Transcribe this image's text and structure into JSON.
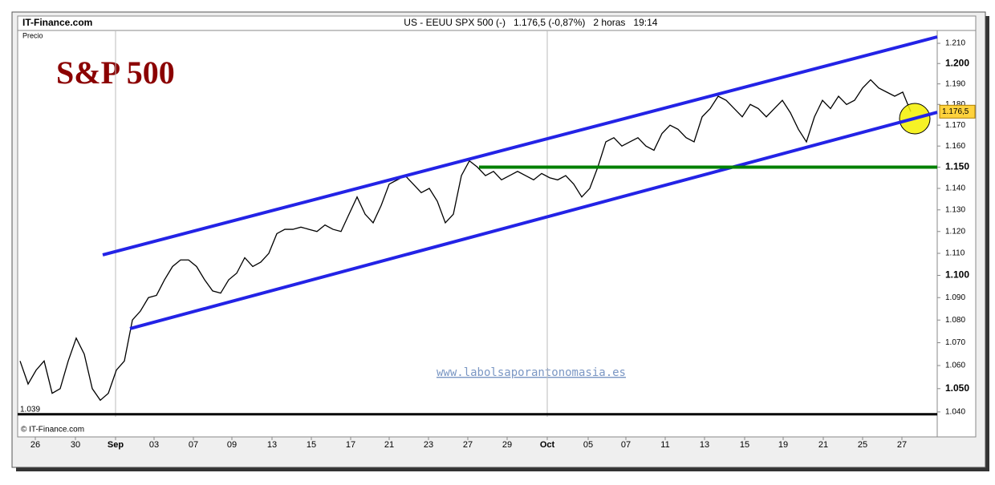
{
  "chart_data": {
    "type": "line",
    "source": "IT-Finance.com",
    "title": "US - EEUU SPX 500 (-)",
    "subtitle": "1.176,5 (-0,87%)   2 horas   19:14",
    "label": "S&P 500",
    "y_label": "Precio",
    "copyright": "© IT-Finance.com",
    "watermark": "www.labolsaporantonomasia.es",
    "log_y": true,
    "color": "#000000",
    "values": [
      1062,
      1052,
      1058,
      1062,
      1048,
      1050,
      1062,
      1072,
      1065,
      1050,
      1045,
      1048,
      1058,
      1062,
      1080,
      1084,
      1090,
      1091,
      1098,
      1104,
      1107,
      1107,
      1104,
      1098,
      1093,
      1092,
      1098,
      1101,
      1108,
      1104,
      1106,
      1110,
      1119,
      1121,
      1121,
      1122,
      1121,
      1120,
      1123,
      1121,
      1120,
      1128,
      1136,
      1128,
      1124,
      1132,
      1142,
      1144,
      1146,
      1142,
      1138,
      1140,
      1134,
      1124,
      1128,
      1146,
      1153,
      1150,
      1146,
      1148,
      1144,
      1146,
      1148,
      1146,
      1144,
      1147,
      1145,
      1144,
      1146,
      1142,
      1136,
      1140,
      1150,
      1162,
      1164,
      1160,
      1162,
      1164,
      1160,
      1158,
      1166,
      1170,
      1168,
      1164,
      1162,
      1174,
      1178,
      1184,
      1182,
      1178,
      1174,
      1180,
      1178,
      1174,
      1178,
      1182,
      1176,
      1168,
      1162,
      1174,
      1182,
      1178,
      1184,
      1180,
      1182,
      1188,
      1192,
      1188,
      1186,
      1184,
      1186,
      1176.5
    ],
    "xlim": [
      -0.3,
      114.3
    ],
    "xticks": [
      {
        "value": 1.9,
        "label": "26"
      },
      {
        "value": 6.9,
        "label": "30"
      },
      {
        "value": 11.9,
        "label": "Sep"
      },
      {
        "value": 16.7,
        "label": "03"
      },
      {
        "value": 21.6,
        "label": "07"
      },
      {
        "value": 26.4,
        "label": "09"
      },
      {
        "value": 31.4,
        "label": "13"
      },
      {
        "value": 36.3,
        "label": "15"
      },
      {
        "value": 41.2,
        "label": "17"
      },
      {
        "value": 46,
        "label": "21"
      },
      {
        "value": 50.9,
        "label": "23"
      },
      {
        "value": 55.8,
        "label": "27"
      },
      {
        "value": 60.7,
        "label": "29"
      },
      {
        "value": 65.7,
        "label": "Oct"
      },
      {
        "value": 70.8,
        "label": "05"
      },
      {
        "value": 75.5,
        "label": "07"
      },
      {
        "value": 80.4,
        "label": "11"
      },
      {
        "value": 85.3,
        "label": "13"
      },
      {
        "value": 90.3,
        "label": "15"
      },
      {
        "value": 95.1,
        "label": "19"
      },
      {
        "value": 100.1,
        "label": "21"
      },
      {
        "value": 105,
        "label": "25"
      },
      {
        "value": 109.9,
        "label": "27"
      }
    ],
    "ylim": [
      1037.9,
      1216.4
    ],
    "yticks": [
      {
        "value": 1040,
        "label": "1.040"
      },
      {
        "value": 1050,
        "label": "1.050"
      },
      {
        "value": 1060,
        "label": "1.060"
      },
      {
        "value": 1070,
        "label": "1.070"
      },
      {
        "value": 1080,
        "label": "1.080"
      },
      {
        "value": 1090,
        "label": "1.090"
      },
      {
        "value": 1100,
        "label": "1.100"
      },
      {
        "value": 1110,
        "label": "1.110"
      },
      {
        "value": 1120,
        "label": "1.120"
      },
      {
        "value": 1130,
        "label": "1.130"
      },
      {
        "value": 1140,
        "label": "1.140"
      },
      {
        "value": 1150,
        "label": "1.150"
      },
      {
        "value": 1160,
        "label": "1.160"
      },
      {
        "value": 1170,
        "label": "1.170"
      },
      {
        "value": 1180,
        "label": "1.180"
      },
      {
        "value": 1190,
        "label": "1.190"
      },
      {
        "value": 1200,
        "label": "1.200"
      },
      {
        "value": 1210,
        "label": "1.210"
      }
    ],
    "last": {
      "value": 1176.5,
      "label": "1.176,5"
    },
    "low": {
      "value": 1039,
      "label": "1.039"
    },
    "lines": [
      {
        "color": "#2323e6",
        "x": [
          10.3,
          114.3
        ],
        "values": [
          1109.3,
          1213.2
        ]
      },
      {
        "color": "#2323e6",
        "x": [
          13.7,
          114.3
        ],
        "values": [
          1076.2,
          1176.2
        ]
      },
      {
        "color": "#008000",
        "x": [
          57.2,
          114.3
        ],
        "values": [
          1150,
          1150
        ]
      }
    ]
  }
}
